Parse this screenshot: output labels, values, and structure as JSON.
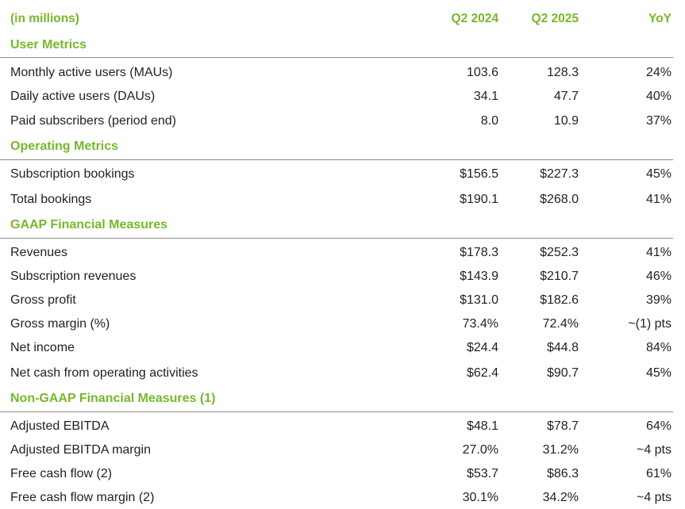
{
  "header": {
    "label": "(in millions)",
    "col1": "Q2 2024",
    "col2": "Q2 2025",
    "col3": "YoY"
  },
  "sections": [
    {
      "title": "User Metrics",
      "rows": [
        {
          "label": "Monthly active users (MAUs)",
          "q2_2024": "103.6",
          "q2_2025": "128.3",
          "yoy": "24%"
        },
        {
          "label": "Daily active users (DAUs)",
          "q2_2024": "34.1",
          "q2_2025": "47.7",
          "yoy": "40%"
        },
        {
          "label": "Paid subscribers (period end)",
          "q2_2024": "8.0",
          "q2_2025": "10.9",
          "yoy": "37%"
        }
      ]
    },
    {
      "title": "Operating Metrics",
      "rows": [
        {
          "label": "Subscription bookings",
          "q2_2024": "$156.5",
          "q2_2025": "$227.3",
          "yoy": "45%"
        },
        {
          "label": "Total bookings",
          "q2_2024": "$190.1",
          "q2_2025": "$268.0",
          "yoy": "41%"
        }
      ]
    },
    {
      "title": "GAAP Financial Measures",
      "rows": [
        {
          "label": "Revenues",
          "q2_2024": "$178.3",
          "q2_2025": "$252.3",
          "yoy": "41%"
        },
        {
          "label": "Subscription revenues",
          "q2_2024": "$143.9",
          "q2_2025": "$210.7",
          "yoy": "46%"
        },
        {
          "label": "Gross profit",
          "q2_2024": "$131.0",
          "q2_2025": "$182.6",
          "yoy": "39%"
        },
        {
          "label": "Gross margin (%)",
          "q2_2024": "73.4%",
          "q2_2025": "72.4%",
          "yoy": "~(1) pts"
        },
        {
          "label": "Net income",
          "q2_2024": "$24.4",
          "q2_2025": "$44.8",
          "yoy": "84%"
        },
        {
          "label": "Net cash from operating activities",
          "q2_2024": "$62.4",
          "q2_2025": "$90.7",
          "yoy": "45%"
        }
      ]
    },
    {
      "title": "Non-GAAP Financial Measures (1)",
      "rows": [
        {
          "label": "Adjusted EBITDA",
          "q2_2024": "$48.1",
          "q2_2025": "$78.7",
          "yoy": "64%"
        },
        {
          "label": "Adjusted EBITDA margin",
          "q2_2024": "27.0%",
          "q2_2025": "31.2%",
          "yoy": "~4 pts"
        },
        {
          "label": "Free cash flow (2)",
          "q2_2024": "$53.7",
          "q2_2025": "$86.3",
          "yoy": "61%"
        },
        {
          "label": "Free cash flow margin (2)",
          "q2_2024": "30.1%",
          "q2_2025": "34.2%",
          "yoy": "~4 pts"
        }
      ]
    }
  ]
}
